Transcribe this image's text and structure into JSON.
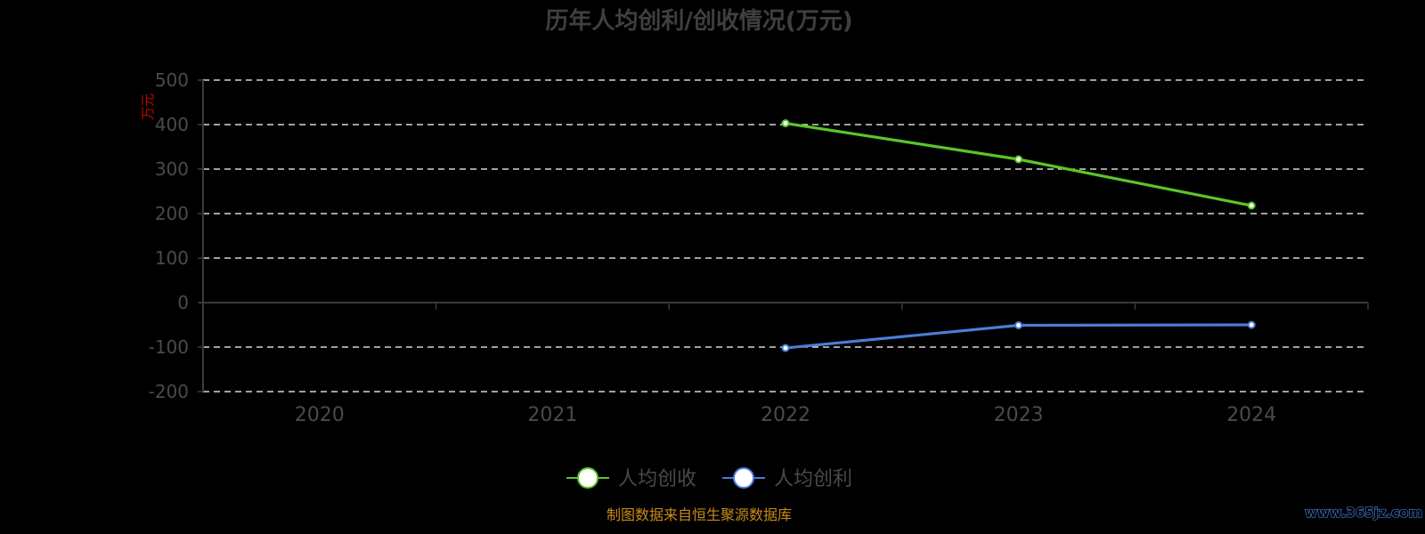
{
  "title": "历年人均创利/创收情况(万元)",
  "source": "制图数据来自恒生聚源数据库",
  "watermark": "www.365jz.com",
  "colors": {
    "background": "#000000",
    "grid": "#ffffff",
    "axis": "#3a3a3a",
    "unit": "#cc0000",
    "source": "#c98a1a"
  },
  "chart_data": {
    "type": "line",
    "title": "历年人均创利/创收情况(万元)",
    "ylabel": "万元",
    "xlabel": "",
    "categories": [
      "2020",
      "2021",
      "2022",
      "2023",
      "2024"
    ],
    "ylim": [
      -200,
      500
    ],
    "yticks": [
      500,
      400,
      300,
      200,
      100,
      0,
      -100,
      -200
    ],
    "grid": true,
    "legend_position": "bottom",
    "series": [
      {
        "name": "人均创收",
        "color": "#5ac52a",
        "values": [
          null,
          null,
          403,
          322,
          218
        ]
      },
      {
        "name": "人均创利",
        "color": "#4a7dd8",
        "values": [
          null,
          null,
          -102,
          -51,
          -50
        ]
      }
    ]
  }
}
